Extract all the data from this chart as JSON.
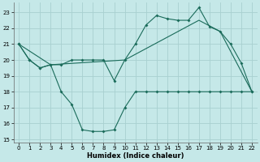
{
  "xlabel": "Humidex (Indice chaleur)",
  "bg_color": "#c5e8e8",
  "grid_color": "#a8d0d0",
  "line_color": "#1a6b5a",
  "xlim": [
    -0.5,
    22.5
  ],
  "ylim": [
    14.8,
    23.6
  ],
  "yticks": [
    15,
    16,
    17,
    18,
    19,
    20,
    21,
    22,
    23
  ],
  "xticks": [
    0,
    1,
    2,
    3,
    4,
    5,
    6,
    7,
    8,
    9,
    10,
    11,
    12,
    13,
    14,
    15,
    16,
    17,
    18,
    19,
    20,
    21,
    22
  ],
  "series1_x": [
    0,
    1,
    2,
    3,
    4,
    5,
    6,
    7,
    8,
    9,
    10,
    11,
    12,
    13,
    14,
    15,
    16,
    17,
    18,
    19,
    20,
    21,
    22
  ],
  "series1_y": [
    21,
    20,
    19.5,
    19.7,
    19.7,
    20,
    20,
    20,
    20,
    18.7,
    20,
    21,
    22.2,
    22.8,
    22.6,
    22.5,
    22.5,
    23.3,
    22.1,
    21.8,
    21,
    19.8,
    18
  ],
  "series2_x": [
    0,
    1,
    2,
    3,
    4,
    5,
    6,
    7,
    8,
    9,
    10,
    11,
    12,
    13,
    14,
    15,
    16,
    17,
    18,
    19,
    20,
    21,
    22
  ],
  "series2_y": [
    21,
    20,
    19.5,
    19.7,
    18,
    17.2,
    15.6,
    15.5,
    15.5,
    15.6,
    17,
    18,
    18,
    18,
    18,
    18,
    18,
    18,
    18,
    18,
    18,
    18,
    18
  ],
  "series3_x": [
    0,
    3,
    10,
    17,
    19,
    22
  ],
  "series3_y": [
    21,
    19.7,
    20,
    22.5,
    21.8,
    18
  ]
}
